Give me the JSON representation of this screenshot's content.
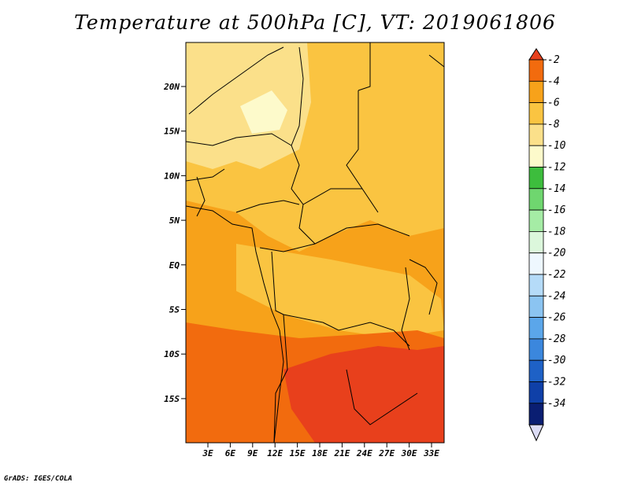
{
  "title": "Temperature at 500hPa [C], VT: 2019061806",
  "credit": "GrADS: IGES/COLA",
  "axes": {
    "lat_ticks": [
      "20N",
      "15N",
      "10N",
      "5N",
      "EQ",
      "5S",
      "10S",
      "15S"
    ],
    "lon_ticks": [
      "3E",
      "6E",
      "9E",
      "12E",
      "15E",
      "18E",
      "21E",
      "24E",
      "27E",
      "30E",
      "33E"
    ]
  },
  "colorbar": {
    "labels": [
      "-2",
      "-4",
      "-6",
      "-8",
      "-10",
      "-12",
      "-14",
      "-16",
      "-18",
      "-20",
      "-22",
      "-24",
      "-26",
      "-28",
      "-30",
      "-32",
      "-34"
    ],
    "colors": [
      "#e8401c",
      "#f26b0e",
      "#f7a21a",
      "#fac441",
      "#fbe08a",
      "#fdfacb",
      "#3dbd3d",
      "#6fd66f",
      "#a5eca5",
      "#dcf7dc",
      "#eef7fe",
      "#b5dbf8",
      "#8bc4f1",
      "#5ba6ea",
      "#3b87dd",
      "#1e61c6",
      "#0f40a8",
      "#0a1e72",
      "#dcdcf5"
    ]
  }
}
